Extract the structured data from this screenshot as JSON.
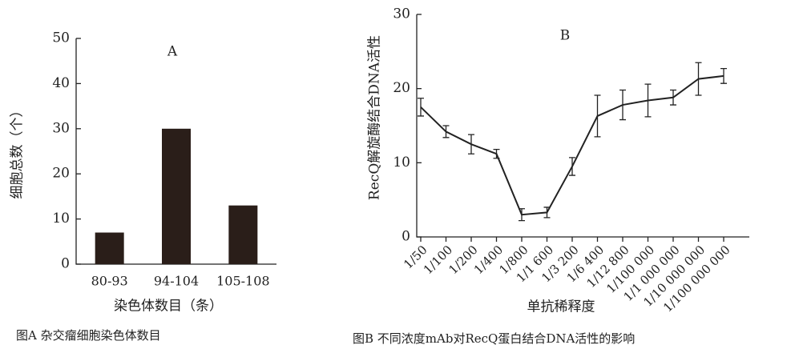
{
  "chart_data": [
    {
      "type": "bar",
      "title": "A",
      "y_label": "细胞总数（个）",
      "x_label": "染色体数目（条）",
      "caption": "图A   杂交瘤细胞染色体数目",
      "categories": [
        "80-93",
        "94-104",
        "105-108"
      ],
      "values": [
        7,
        30,
        13
      ],
      "color": "#2a1e19",
      "ylim": [
        0,
        50
      ],
      "yticks": [
        0,
        10,
        20,
        30,
        40,
        50
      ]
    },
    {
      "type": "line",
      "title": "B",
      "y_label": "RecQ解旋酶结合DNA活性",
      "x_label": "单抗稀释度",
      "caption": "图B   不同浓度mAb对RecQ蛋白结合DNA活性的影响",
      "categories": [
        "1/50",
        "1/100",
        "1/200",
        "1/400",
        "1/800",
        "1/1 600",
        "1/3 200",
        "1/6 400",
        "1/12 800",
        "1/100 000",
        "1/1 000 000",
        "1/10 000 000",
        "1/100 000 000"
      ],
      "values": [
        17.5,
        14.2,
        12.5,
        11.2,
        3.0,
        3.3,
        9.5,
        16.3,
        17.8,
        18.4,
        18.8,
        21.3,
        21.7
      ],
      "errors": [
        1.2,
        0.8,
        1.3,
        0.6,
        0.8,
        0.7,
        1.2,
        2.8,
        2.0,
        2.2,
        1.0,
        2.2,
        1.0
      ],
      "color": "#222222",
      "ylim": [
        0,
        30
      ],
      "yticks": [
        0,
        10,
        20,
        30
      ]
    }
  ]
}
